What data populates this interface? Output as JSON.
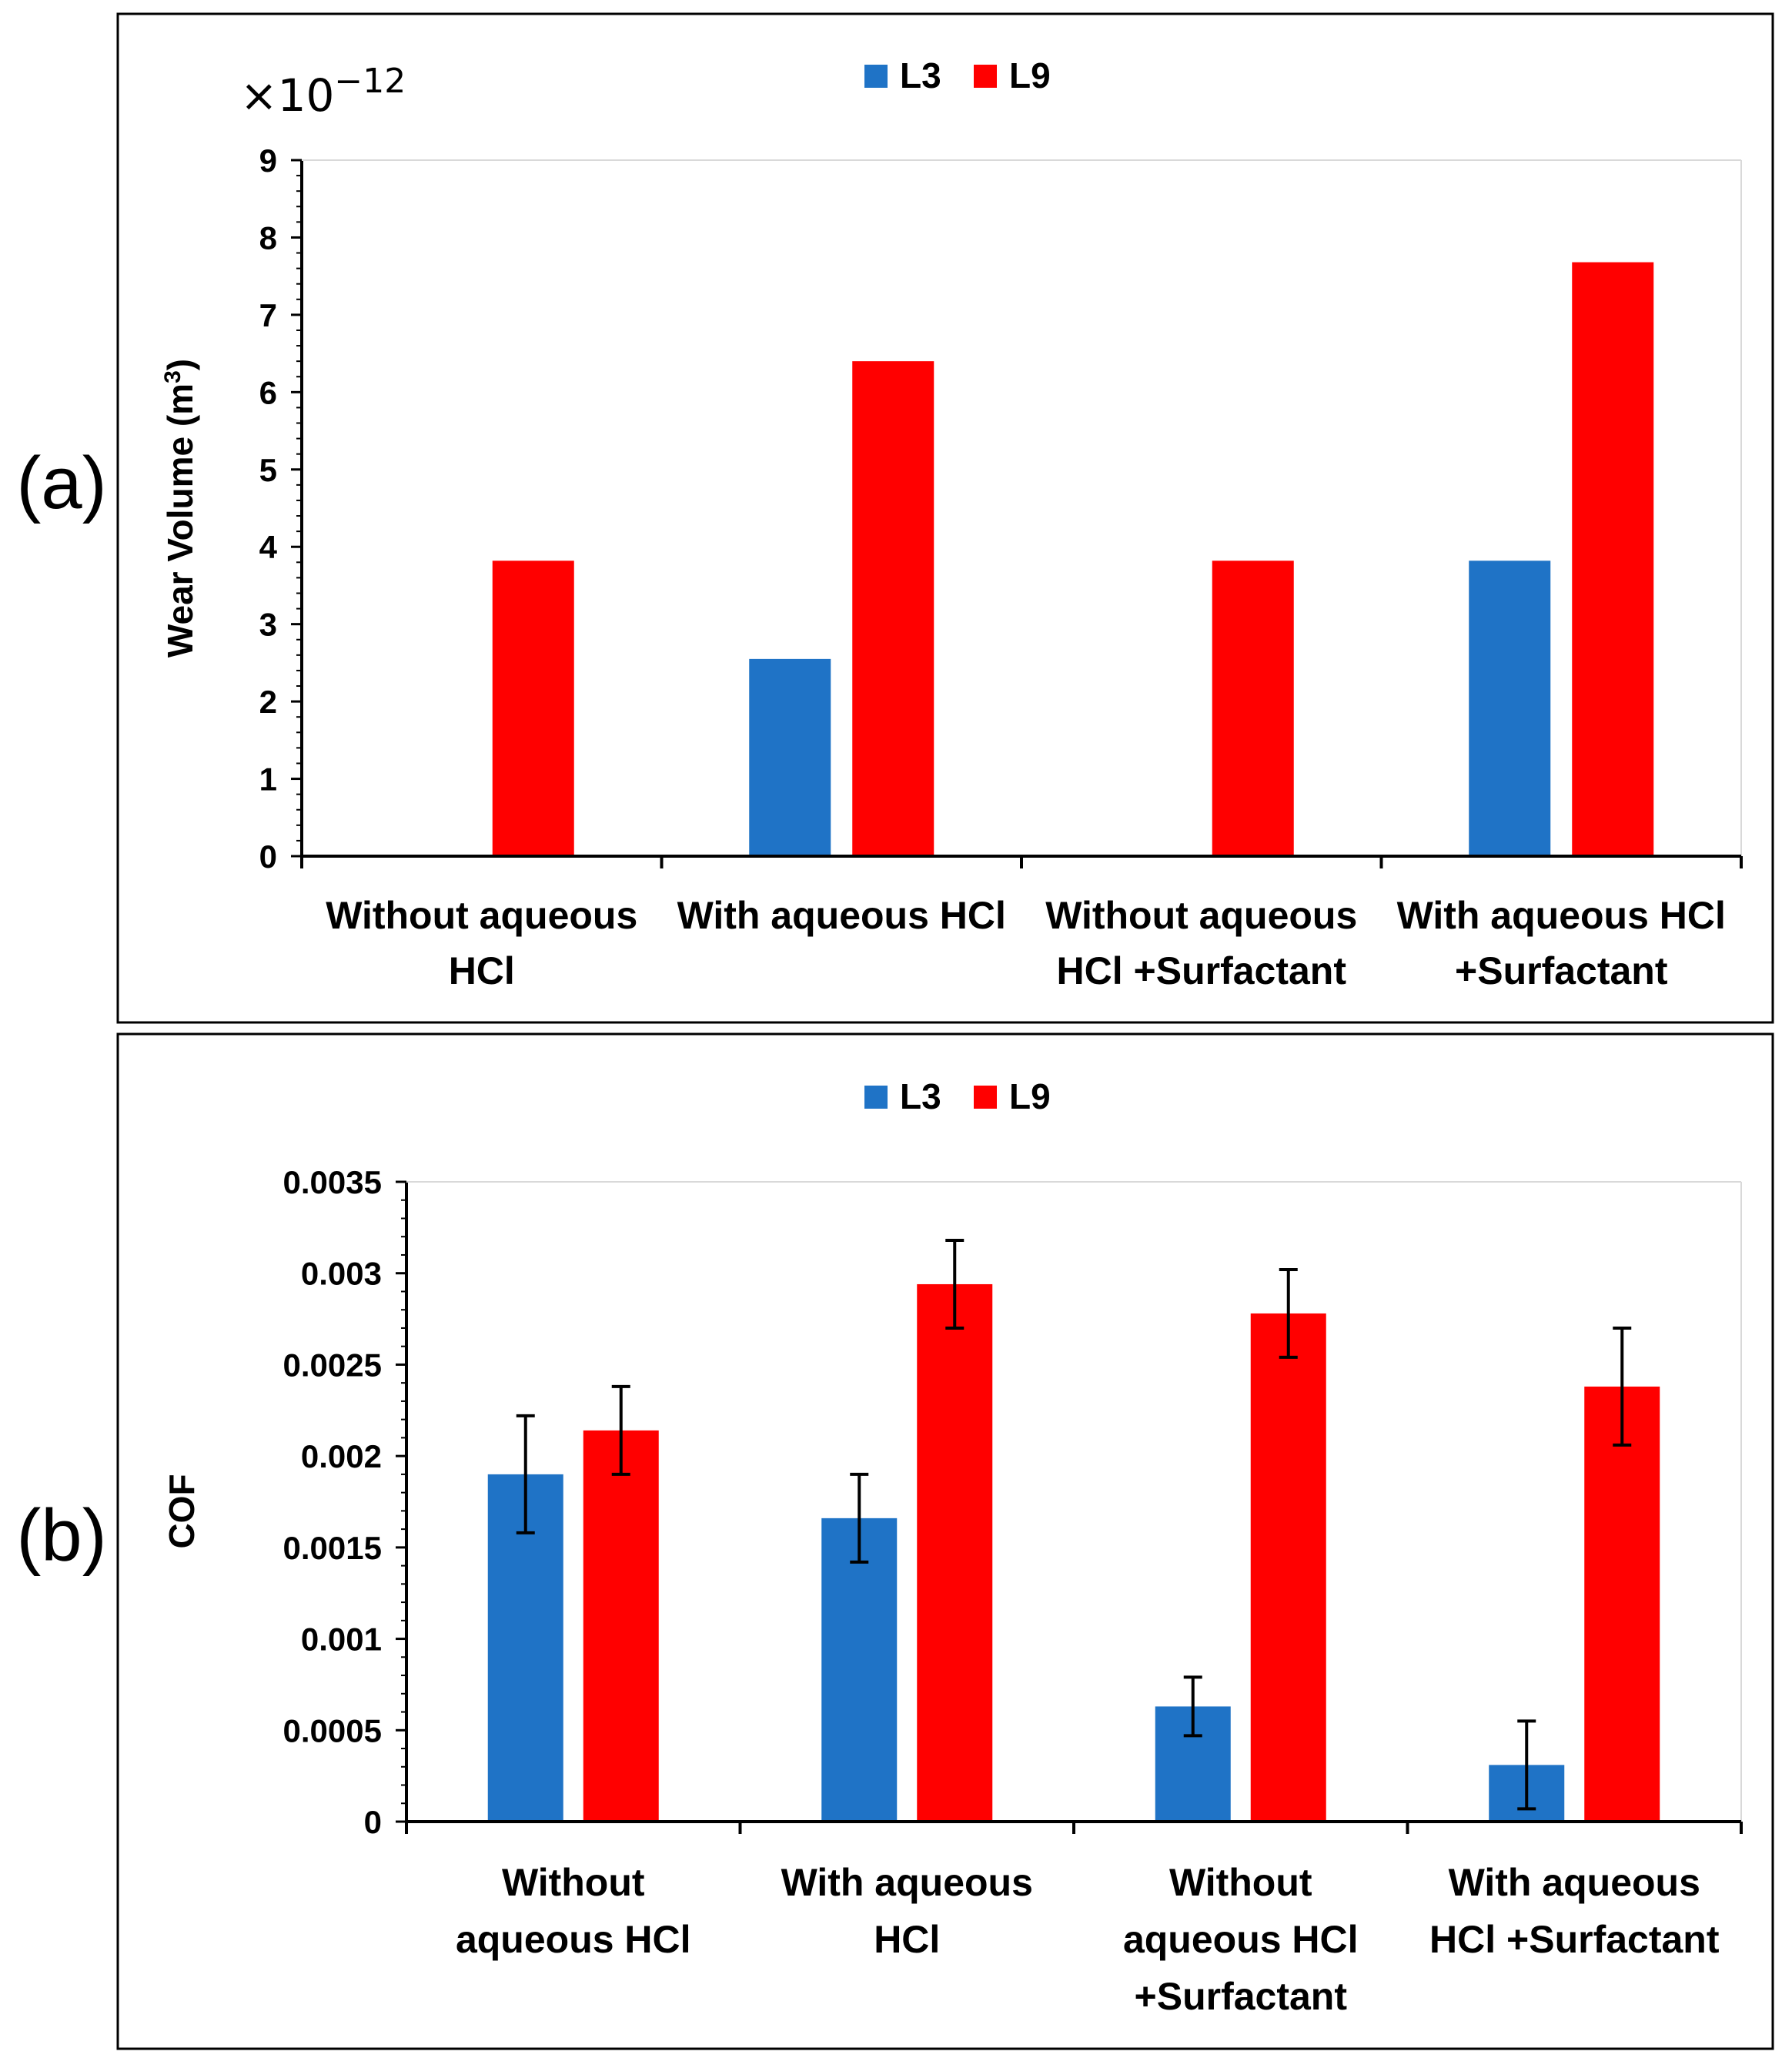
{
  "chart_data": [
    {
      "type": "bar",
      "panel_label": "(a)",
      "ylabel": "Wear Volume (m",
      "ylabel_sup": "3",
      "ylabel_close": ")",
      "multiplier_text": "×10",
      "multiplier_exp": "−12",
      "ylim": [
        0,
        9
      ],
      "yticks": [
        "0",
        "1",
        "2",
        "3",
        "4",
        "5",
        "6",
        "7",
        "8",
        "9"
      ],
      "categories": [
        [
          "Without aqueous",
          "HCl"
        ],
        [
          "With aqueous HCl"
        ],
        [
          "Without aqueous",
          "HCl +Surfactant"
        ],
        [
          "With aqueous HCl",
          "+Surfactant"
        ]
      ],
      "series": [
        {
          "name": "L3",
          "color": "#1f73c6",
          "values": [
            0,
            2.55,
            0,
            3.82
          ]
        },
        {
          "name": "L9",
          "color": "#ff0000",
          "values": [
            3.82,
            6.4,
            3.82,
            7.68
          ]
        }
      ]
    },
    {
      "type": "bar",
      "panel_label": "(b)",
      "ylabel": "COF",
      "ylim": [
        0,
        0.0035
      ],
      "yticks": [
        "0",
        "0.0005",
        "0.001",
        "0.0015",
        "0.002",
        "0.0025",
        "0.003",
        "0.0035"
      ],
      "categories": [
        [
          "Without",
          "aqueous HCl"
        ],
        [
          "With aqueous",
          "HCl"
        ],
        [
          "Without",
          "aqueous HCl",
          "+Surfactant"
        ],
        [
          "With aqueous",
          "HCl +Surfactant"
        ]
      ],
      "series": [
        {
          "name": "L3",
          "color": "#1f73c6",
          "values": [
            0.0019,
            0.00166,
            0.00063,
            0.00031
          ],
          "errors": [
            0.00032,
            0.00024,
            0.00016,
            0.00024
          ]
        },
        {
          "name": "L9",
          "color": "#ff0000",
          "values": [
            0.00214,
            0.00294,
            0.00278,
            0.00238
          ],
          "errors": [
            0.00024,
            0.00024,
            0.00024,
            0.00032
          ]
        }
      ]
    }
  ]
}
